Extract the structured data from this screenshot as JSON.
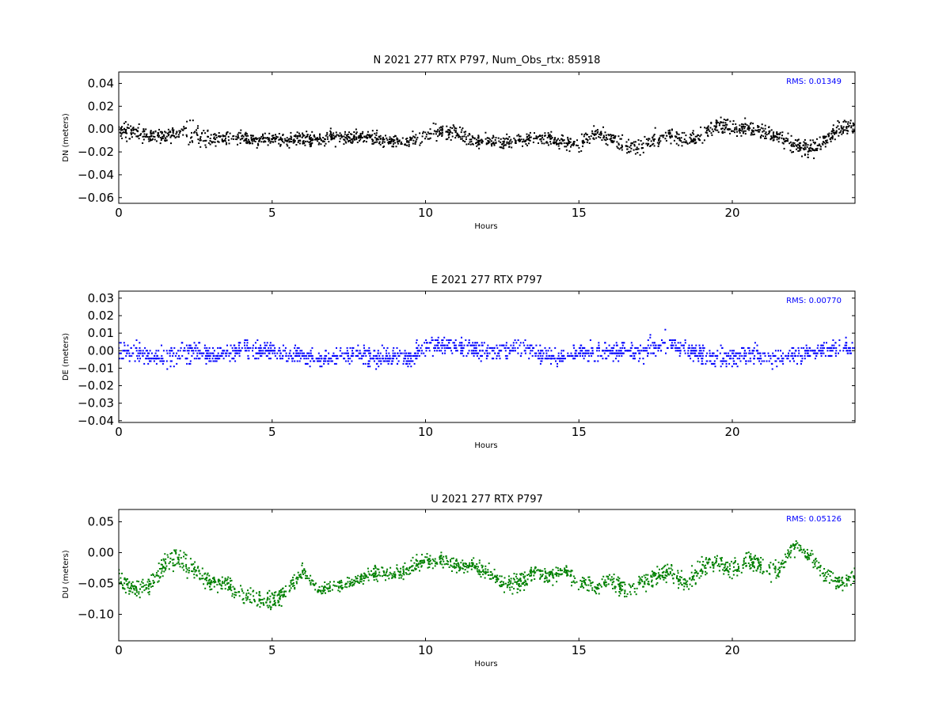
{
  "chart_data": [
    {
      "type": "scatter",
      "title": "N 2021 277 RTX  P797, Num_Obs_rtx: 85918",
      "ylabel": "DN (meters)",
      "xlabel": "Hours",
      "rms_label": "RMS:  0.01349",
      "color": "#000000",
      "xlim": [
        0,
        24
      ],
      "ylim": [
        -0.065,
        0.05
      ],
      "xticks": [
        0,
        5,
        10,
        15,
        20
      ],
      "yticks": [
        0.04,
        0.02,
        0.0,
        -0.02,
        -0.04,
        -0.06
      ],
      "ytick_labels": [
        "0.04",
        "0.02",
        "0.00",
        "−0.02",
        "−0.04",
        "−0.06"
      ],
      "series": [
        {
          "x": [
            0,
            0.5,
            1,
            1.5,
            2,
            2.5,
            3,
            3.5,
            4,
            4.5,
            5,
            5.5,
            6,
            6.5,
            7,
            7.5,
            8,
            8.5,
            9,
            9.5,
            10,
            10.5,
            11,
            11.5,
            12,
            12.5,
            13,
            13.5,
            14,
            14.5,
            15,
            15.5,
            16,
            16.5,
            17,
            17.5,
            18,
            18.5,
            19,
            19.5,
            20,
            20.5,
            21,
            21.5,
            22,
            22.5,
            23,
            23.5,
            24
          ],
          "mean": [
            0.0,
            -0.004,
            -0.006,
            -0.006,
            -0.003,
            -0.004,
            -0.008,
            -0.009,
            -0.008,
            -0.01,
            -0.009,
            -0.01,
            -0.008,
            -0.009,
            -0.008,
            -0.007,
            -0.006,
            -0.009,
            -0.011,
            -0.01,
            -0.006,
            -0.002,
            -0.004,
            -0.01,
            -0.011,
            -0.012,
            -0.01,
            -0.008,
            -0.008,
            -0.012,
            -0.013,
            -0.004,
            -0.008,
            -0.016,
            -0.016,
            -0.008,
            -0.005,
            -0.009,
            -0.006,
            0.004,
            0.002,
            0.001,
            -0.002,
            -0.006,
            -0.013,
            -0.018,
            -0.01,
            0.0,
            0.002
          ],
          "spread": [
            0.012,
            0.014,
            0.011,
            0.01,
            0.018,
            0.02,
            0.018,
            0.011,
            0.01,
            0.009,
            0.01,
            0.009,
            0.01,
            0.01,
            0.011,
            0.01,
            0.01,
            0.01,
            0.011,
            0.01,
            0.013,
            0.013,
            0.012,
            0.01,
            0.01,
            0.01,
            0.01,
            0.01,
            0.011,
            0.011,
            0.012,
            0.012,
            0.012,
            0.012,
            0.013,
            0.012,
            0.011,
            0.011,
            0.012,
            0.014,
            0.013,
            0.012,
            0.012,
            0.012,
            0.013,
            0.015,
            0.013,
            0.013,
            0.013
          ]
        }
      ]
    },
    {
      "type": "scatter",
      "title": "E 2021 277 RTX  P797",
      "ylabel": "DE (meters)",
      "xlabel": "Hours",
      "rms_label": "RMS:  0.00770",
      "color": "#0000ff",
      "xlim": [
        0,
        24
      ],
      "ylim": [
        -0.041,
        0.034
      ],
      "xticks": [
        0,
        5,
        10,
        15,
        20
      ],
      "yticks": [
        0.03,
        0.02,
        0.01,
        0.0,
        -0.01,
        -0.02,
        -0.03,
        -0.04
      ],
      "ytick_labels": [
        "0.03",
        "0.02",
        "0.01",
        "0.00",
        "−0.01",
        "−0.02",
        "−0.03",
        "−0.04"
      ],
      "series": [
        {
          "x": [
            0,
            0.5,
            1,
            1.5,
            2,
            2.5,
            3,
            3.5,
            4,
            4.5,
            5,
            5.5,
            6,
            6.5,
            7,
            7.5,
            8,
            8.5,
            9,
            9.5,
            10,
            10.5,
            11,
            11.5,
            12,
            12.5,
            13,
            13.5,
            14,
            14.5,
            15,
            15.5,
            16,
            16.5,
            17,
            17.5,
            18,
            18.5,
            19,
            19.5,
            20,
            20.5,
            21,
            21.5,
            22,
            22.5,
            23,
            23.5,
            24
          ],
          "mean": [
            0.002,
            -0.001,
            -0.003,
            -0.004,
            -0.001,
            0.0,
            -0.004,
            -0.001,
            0.001,
            0.0,
            0.0,
            -0.002,
            -0.003,
            -0.005,
            -0.004,
            -0.002,
            -0.003,
            -0.004,
            -0.003,
            -0.004,
            0.003,
            0.004,
            0.002,
            0.001,
            -0.001,
            0.0,
            0.002,
            0.0,
            -0.003,
            -0.003,
            -0.001,
            -0.001,
            0.0,
            0.0,
            -0.002,
            0.002,
            0.004,
            0.001,
            -0.003,
            -0.004,
            -0.004,
            -0.002,
            -0.003,
            -0.004,
            -0.003,
            -0.001,
            0.001,
            0.001,
            0.002
          ],
          "spread": [
            0.011,
            0.011,
            0.009,
            0.009,
            0.012,
            0.011,
            0.009,
            0.009,
            0.009,
            0.009,
            0.009,
            0.008,
            0.008,
            0.008,
            0.008,
            0.009,
            0.009,
            0.009,
            0.009,
            0.009,
            0.01,
            0.01,
            0.009,
            0.009,
            0.009,
            0.009,
            0.009,
            0.009,
            0.008,
            0.008,
            0.008,
            0.009,
            0.009,
            0.009,
            0.009,
            0.01,
            0.01,
            0.009,
            0.01,
            0.01,
            0.01,
            0.01,
            0.01,
            0.01,
            0.01,
            0.009,
            0.009,
            0.009,
            0.01
          ]
        }
      ]
    },
    {
      "type": "scatter",
      "title": "U 2021 277 RTX  P797",
      "ylabel": "DU (meters)",
      "xlabel": "Hours",
      "rms_label": "RMS:  0.05126",
      "color": "#008000",
      "xlim": [
        0,
        24
      ],
      "ylim": [
        -0.143,
        0.07
      ],
      "xticks": [
        0,
        5,
        10,
        15,
        20
      ],
      "yticks": [
        0.05,
        0.0,
        -0.05,
        -0.1
      ],
      "ytick_labels": [
        "0.05",
        "0.00",
        "−0.05",
        "−0.10"
      ],
      "series": [
        {
          "x": [
            0,
            0.5,
            1,
            1.5,
            2,
            2.5,
            3,
            3.5,
            4,
            4.5,
            5,
            5.5,
            6,
            6.5,
            7,
            7.5,
            8,
            8.5,
            9,
            9.5,
            10,
            10.5,
            11,
            11.5,
            12,
            12.5,
            13,
            13.5,
            14,
            14.5,
            15,
            15.5,
            16,
            16.5,
            17,
            17.5,
            18,
            18.5,
            19,
            19.5,
            20,
            20.5,
            21,
            21.5,
            22,
            22.5,
            23,
            23.5,
            24
          ],
          "mean": [
            -0.04,
            -0.06,
            -0.055,
            -0.02,
            -0.01,
            -0.03,
            -0.05,
            -0.05,
            -0.07,
            -0.075,
            -0.08,
            -0.06,
            -0.03,
            -0.06,
            -0.055,
            -0.05,
            -0.04,
            -0.03,
            -0.035,
            -0.025,
            -0.015,
            -0.01,
            -0.02,
            -0.02,
            -0.03,
            -0.05,
            -0.05,
            -0.03,
            -0.04,
            -0.03,
            -0.045,
            -0.06,
            -0.04,
            -0.06,
            -0.05,
            -0.04,
            -0.03,
            -0.05,
            -0.025,
            -0.015,
            -0.03,
            -0.01,
            -0.025,
            -0.03,
            0.01,
            -0.005,
            -0.035,
            -0.05,
            -0.04
          ],
          "spread": [
            0.025,
            0.025,
            0.025,
            0.035,
            0.035,
            0.03,
            0.02,
            0.02,
            0.025,
            0.025,
            0.03,
            0.025,
            0.02,
            0.018,
            0.018,
            0.02,
            0.02,
            0.022,
            0.02,
            0.02,
            0.025,
            0.022,
            0.02,
            0.02,
            0.02,
            0.025,
            0.03,
            0.025,
            0.022,
            0.022,
            0.025,
            0.025,
            0.025,
            0.03,
            0.025,
            0.025,
            0.025,
            0.03,
            0.03,
            0.025,
            0.035,
            0.03,
            0.03,
            0.03,
            0.025,
            0.025,
            0.025,
            0.025,
            0.025
          ]
        }
      ]
    }
  ]
}
